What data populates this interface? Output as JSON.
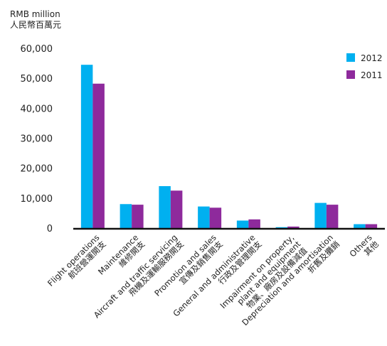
{
  "chart_data": {
    "type": "bar",
    "unit_label_en": "RMB million",
    "unit_label_zh": "人民幣百萬元",
    "categories": [
      {
        "en": "Flight operations",
        "zh": "航班營運開支"
      },
      {
        "en": "Maintenance",
        "zh": "維修開支"
      },
      {
        "en": "Aircraft and traffic servicing",
        "zh": "飛機及運輸服務開支"
      },
      {
        "en": "Promotion and sales",
        "zh": "宣傳及銷售開支"
      },
      {
        "en": "General and administrative",
        "zh": "行政及管理開支"
      },
      {
        "en": "Impairment on property,",
        "en2": "plant and equipment",
        "zh": "物業、廠房及設備減值"
      },
      {
        "en": "Depreciation and amortisation",
        "zh": "折舊及攤銷"
      },
      {
        "en": "Others",
        "zh": "其他"
      }
    ],
    "series": [
      {
        "name": "2012",
        "color": "#00b0f0",
        "values": [
          54500,
          8000,
          14000,
          7200,
          2500,
          300,
          8400,
          1300
        ]
      },
      {
        "name": "2011",
        "color": "#8e2a9c",
        "values": [
          48200,
          7800,
          12500,
          6800,
          2900,
          500,
          7800,
          1300
        ]
      }
    ],
    "ylim": [
      0,
      60000
    ],
    "yticks": [
      0,
      10000,
      20000,
      30000,
      40000,
      50000,
      60000
    ],
    "ytick_labels": [
      "0",
      "10,000",
      "20,000",
      "30,000",
      "40,000",
      "50,000",
      "60,000"
    ],
    "grid": false,
    "legend": "top-right"
  }
}
